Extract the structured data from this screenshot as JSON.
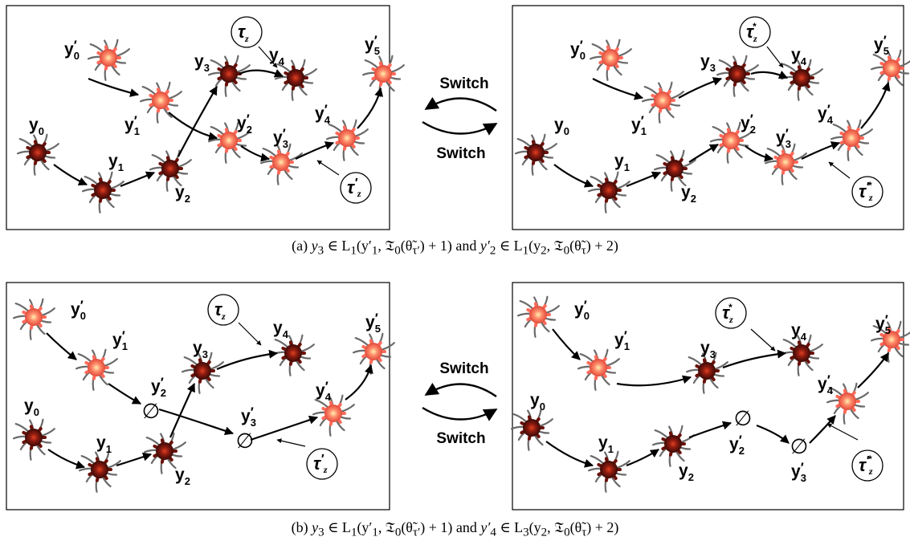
{
  "labels": {
    "switch": "Switch",
    "tau": "τ",
    "sub_z": "z",
    "y": "y",
    "prime": "′",
    "star": "*",
    "empty": "∅",
    "n0": "0",
    "n1": "1",
    "n2": "2",
    "n3": "3",
    "n4": "4",
    "n5": "5"
  },
  "captions": {
    "a": {
      "prefix": "(a) ",
      "left": "y",
      "left_sub": "3",
      "left_rest": " ∈ L",
      "l_sub": "1",
      "args1": "(y′",
      "args1_sub": "1",
      "args1_rest": ", 𝔗",
      "t_sub": "0",
      "theta1": "(θ̃",
      "theta1_sub": "τ′",
      "theta1_rest": ") + 1)",
      "mid": " and ",
      "right": "y′",
      "right_sub": "2",
      "right_rest": " ∈ L",
      "l2_sub": "1",
      "args2": "(y",
      "args2_sub": "2",
      "args2_rest": ", 𝔗",
      "t2_sub": "0",
      "theta2": "(θ̃",
      "theta2_sub": "τ",
      "theta2_rest": ") + 2)"
    },
    "b": {
      "prefix": "(b) ",
      "left": "y",
      "left_sub": "3",
      "left_rest": " ∈ L",
      "l_sub": "1",
      "args1": "(y′",
      "args1_sub": "1",
      "args1_rest": ", 𝔗",
      "t_sub": "0",
      "theta1": "(θ̃",
      "theta1_sub": "τ′",
      "theta1_rest": ") + 1)",
      "mid": " and ",
      "right": "y′",
      "right_sub": "4",
      "right_rest": " ∈ L",
      "l2_sub": "3",
      "args2": "(y",
      "args2_sub": "2",
      "args2_rest": ", 𝔗",
      "t2_sub": "0",
      "theta2": "(θ̃",
      "theta2_sub": "τ",
      "theta2_rest": ") + 2)"
    }
  },
  "colors": {
    "dark_cell": "#8a1a10",
    "light_cell": "#ff8a6a",
    "dendrite": "#6a6a6a",
    "arrow": "#000000"
  }
}
